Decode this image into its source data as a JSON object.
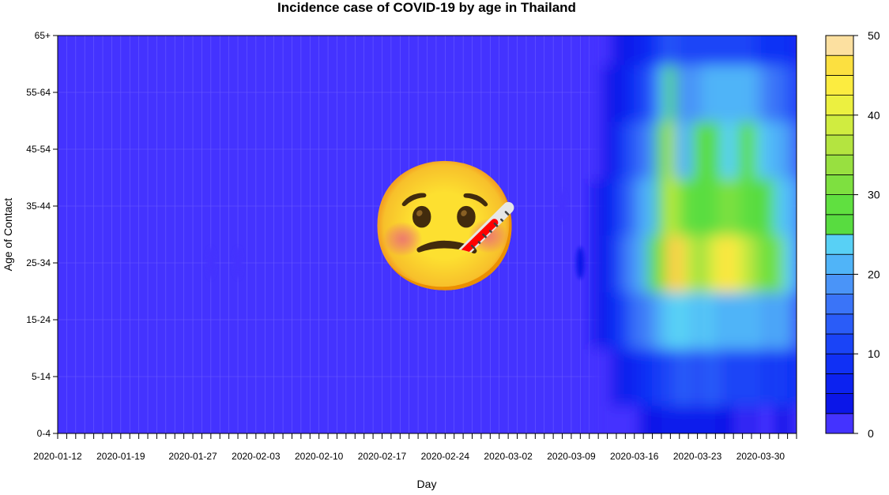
{
  "chart_data": {
    "type": "heatmap",
    "title": "Incidence case of COVID-19 by age in Thailand",
    "xlabel": "Day",
    "ylabel": "Age of Contact",
    "x_tick_labels": [
      "2020-01-12",
      "2020-01-19",
      "2020-01-27",
      "2020-02-03",
      "2020-02-10",
      "2020-02-17",
      "2020-02-24",
      "2020-03-02",
      "2020-03-09",
      "2020-03-16",
      "2020-03-23",
      "2020-03-30"
    ],
    "y_tick_labels": [
      "0-4",
      "5-14",
      "15-24",
      "25-34",
      "35-44",
      "45-54",
      "55-64",
      "65+"
    ],
    "colorbar": {
      "min": 0,
      "max": 50,
      "step": 2.5,
      "tick_labels": [
        "0",
        "10",
        "20",
        "30",
        "40",
        "50"
      ]
    },
    "colors": {
      "background": "#4433ff",
      "scale": [
        "#4433ff",
        "#0b16e8",
        "#0c22f0",
        "#1030f5",
        "#1a44f7",
        "#2a5cf8",
        "#3a74f8",
        "#4a94f8",
        "#50b4f8",
        "#58d0f5",
        "#58dc40",
        "#60e040",
        "#7ee040",
        "#98e040",
        "#b4e440",
        "#d0ec40",
        "#ecf040",
        "#fcec40",
        "#fce040",
        "#fcd048",
        "#fce0a0"
      ]
    },
    "series": [
      {
        "date": "2020-03-12",
        "values": [
          0,
          1,
          3,
          4,
          3,
          2,
          1,
          1
        ]
      },
      {
        "date": "2020-03-13",
        "values": [
          0,
          2,
          5,
          7,
          6,
          4,
          3,
          2
        ]
      },
      {
        "date": "2020-03-14",
        "values": [
          1,
          3,
          8,
          10,
          9,
          7,
          4,
          3
        ]
      },
      {
        "date": "2020-03-15",
        "values": [
          2,
          5,
          12,
          16,
          14,
          10,
          6,
          4
        ]
      },
      {
        "date": "2020-03-16",
        "values": [
          2,
          6,
          15,
          19,
          17,
          13,
          8,
          5
        ]
      },
      {
        "date": "2020-03-17",
        "values": [
          3,
          8,
          17,
          22,
          20,
          16,
          10,
          6
        ]
      },
      {
        "date": "2020-03-18",
        "values": [
          3,
          9,
          18,
          25,
          22,
          19,
          13,
          8
        ]
      },
      {
        "date": "2020-03-19",
        "values": [
          4,
          10,
          20,
          32,
          28,
          25,
          22,
          10
        ]
      },
      {
        "date": "2020-03-20",
        "values": [
          5,
          12,
          24,
          48,
          38,
          36,
          26,
          14
        ]
      },
      {
        "date": "2020-03-21",
        "values": [
          4,
          14,
          23,
          49,
          30,
          22,
          19,
          11
        ]
      },
      {
        "date": "2020-03-22",
        "values": [
          5,
          14,
          24,
          38,
          28,
          20,
          18,
          12
        ]
      },
      {
        "date": "2020-03-23",
        "values": [
          4,
          12,
          22,
          34,
          26,
          28,
          19,
          11
        ]
      },
      {
        "date": "2020-03-24",
        "values": [
          5,
          13,
          23,
          36,
          27,
          25,
          21,
          12
        ]
      },
      {
        "date": "2020-03-25",
        "values": [
          4,
          13,
          22,
          40,
          28,
          27,
          20,
          11
        ]
      },
      {
        "date": "2020-03-26",
        "values": [
          3,
          12,
          21,
          46,
          30,
          24,
          21,
          12
        ]
      },
      {
        "date": "2020-03-27",
        "values": [
          3,
          11,
          21,
          44,
          32,
          23,
          22,
          11
        ]
      },
      {
        "date": "2020-03-28",
        "values": [
          2,
          10,
          20,
          38,
          29,
          25,
          21,
          10
        ]
      },
      {
        "date": "2020-03-29",
        "values": [
          3,
          11,
          21,
          35,
          27,
          28,
          20,
          10
        ]
      },
      {
        "date": "2020-03-30",
        "values": [
          2,
          10,
          20,
          32,
          26,
          24,
          19,
          9
        ]
      },
      {
        "date": "2020-03-31",
        "values": [
          2,
          9,
          19,
          28,
          25,
          20,
          17,
          9
        ]
      },
      {
        "date": "2020-04-01",
        "values": [
          3,
          10,
          20,
          30,
          24,
          21,
          16,
          8
        ]
      },
      {
        "date": "2020-04-02",
        "values": [
          3,
          9,
          18,
          24,
          22,
          18,
          14,
          8
        ]
      },
      {
        "date": "2020-04-03",
        "values": [
          2,
          8,
          16,
          22,
          20,
          16,
          12,
          7
        ]
      }
    ],
    "small_blobs": [
      {
        "date": "2020-01-29",
        "age": "25-34",
        "value": 1
      },
      {
        "date": "2020-02-01",
        "age": "25-34",
        "value": 1
      },
      {
        "date": "2020-03-08",
        "age": "35-44",
        "value": 2
      },
      {
        "date": "2020-03-10",
        "age": "25-34",
        "value": 3
      }
    ],
    "overlay": {
      "emoji": "🤒",
      "name": "face-with-thermometer"
    }
  }
}
